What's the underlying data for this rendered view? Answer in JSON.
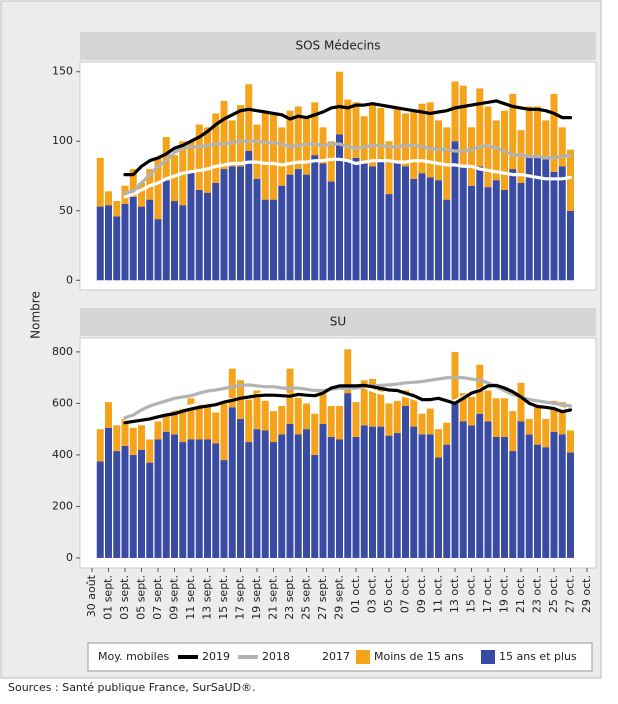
{
  "y_label": "Nombre",
  "legend_title": "Moy. mobiles",
  "source": "Sources : Santé publique France, SurSaUD®.",
  "chart_data": [
    {
      "type": "bar",
      "stacked": true,
      "title": "SOS Médecins",
      "ylim": [
        -7,
        157
      ],
      "yticks": [
        0,
        50,
        100,
        150
      ],
      "series": [
        {
          "name": "15 ans et plus",
          "type": "bar",
          "color": "#3a4ba3",
          "values": [
            null,
            53,
            54,
            46,
            55,
            60,
            53,
            58,
            44,
            72,
            57,
            54,
            78,
            65,
            63,
            70,
            80,
            82,
            82,
            93,
            73,
            58,
            58,
            68,
            76,
            80,
            76,
            90,
            84,
            71,
            105,
            87,
            88,
            84,
            82,
            86,
            62,
            86,
            82,
            73,
            77,
            74,
            72,
            58,
            100,
            83,
            68,
            82,
            67,
            72,
            65,
            80,
            70,
            90,
            88,
            87,
            78,
            82,
            50,
            null,
            null
          ]
        },
        {
          "name": "Moins de 15 ans",
          "type": "bar",
          "color": "#f5a31a",
          "values": [
            null,
            35,
            10,
            11,
            13,
            20,
            17,
            22,
            44,
            31,
            33,
            46,
            22,
            47,
            47,
            50,
            49,
            33,
            44,
            48,
            39,
            63,
            62,
            42,
            46,
            45,
            42,
            38,
            26,
            29,
            45,
            43,
            40,
            34,
            45,
            38,
            38,
            39,
            38,
            48,
            50,
            54,
            43,
            52,
            43,
            57,
            42,
            56,
            58,
            43,
            57,
            54,
            38,
            35,
            37,
            28,
            56,
            28,
            44,
            null,
            null
          ]
        },
        {
          "name": "2019",
          "type": "line",
          "color": "#000000",
          "values": [
            null,
            null,
            null,
            null,
            76,
            76,
            82,
            86,
            88,
            91,
            95,
            97,
            100,
            103,
            107,
            112,
            116,
            119,
            122,
            123,
            122,
            121,
            120,
            119,
            116,
            118,
            117,
            119,
            121,
            124,
            125,
            124,
            126,
            126,
            127,
            126,
            125,
            124,
            123,
            122,
            121,
            120,
            121,
            122,
            124,
            125,
            126,
            127,
            128,
            129,
            127,
            125,
            124,
            123,
            123,
            122,
            120,
            117,
            117,
            null,
            null
          ]
        },
        {
          "name": "2018",
          "type": "line",
          "color": "#b3b3b3",
          "values": [
            null,
            null,
            null,
            null,
            63,
            64,
            70,
            76,
            82,
            86,
            92,
            95,
            96,
            96,
            97,
            98,
            98,
            99,
            100,
            100,
            100,
            99,
            99,
            98,
            96,
            97,
            98,
            98,
            97,
            98,
            98,
            96,
            95,
            96,
            97,
            97,
            96,
            96,
            97,
            97,
            96,
            95,
            94,
            94,
            93,
            93,
            94,
            96,
            97,
            95,
            93,
            90,
            90,
            89,
            89,
            88,
            88,
            89,
            90,
            null,
            null
          ]
        },
        {
          "name": "2017",
          "type": "line",
          "color": "#ffffff",
          "values": [
            null,
            null,
            null,
            null,
            60,
            62,
            65,
            68,
            70,
            73,
            75,
            77,
            78,
            79,
            80,
            82,
            83,
            84,
            84,
            85,
            85,
            84,
            84,
            83,
            84,
            85,
            85,
            86,
            86,
            87,
            87,
            86,
            84,
            85,
            86,
            86,
            86,
            85,
            85,
            86,
            86,
            85,
            84,
            83,
            83,
            82,
            82,
            80,
            79,
            78,
            77,
            76,
            76,
            75,
            74,
            73,
            73,
            73,
            74,
            null,
            null
          ]
        }
      ]
    },
    {
      "type": "bar",
      "stacked": true,
      "title": "SU",
      "categories": [
        "30 août",
        null,
        "01 sept.",
        null,
        "03 sept.",
        null,
        "05 sept.",
        null,
        "07 sept.",
        null,
        "09 sept.",
        null,
        "11 sept.",
        null,
        "13 sept.",
        null,
        "15 sept.",
        null,
        "17 sept.",
        null,
        "19 sept.",
        null,
        "21 sept.",
        null,
        "23 sept.",
        null,
        "25 sept.",
        null,
        "27 sept.",
        null,
        "29 sept.",
        null,
        "01 oct.",
        null,
        "03 oct.",
        null,
        "05 oct.",
        null,
        "07 oct.",
        null,
        "09 oct.",
        null,
        "11 oct.",
        null,
        "13 oct.",
        null,
        "15 oct.",
        null,
        "17 oct.",
        null,
        "19 oct.",
        null,
        "21 oct.",
        null,
        "23 oct.",
        null,
        "25 oct.",
        null,
        "27 oct.",
        null,
        "29 oct."
      ],
      "ylim": [
        -39,
        854
      ],
      "yticks": [
        0,
        200,
        400,
        600,
        800
      ],
      "series": [
        {
          "name": "15 ans et plus",
          "type": "bar",
          "color": "#3a4ba3",
          "values": [
            null,
            375,
            505,
            415,
            435,
            400,
            420,
            370,
            460,
            490,
            480,
            450,
            460,
            460,
            460,
            445,
            380,
            585,
            540,
            450,
            500,
            495,
            450,
            480,
            520,
            480,
            500,
            400,
            520,
            470,
            460,
            640,
            470,
            515,
            510,
            510,
            475,
            485,
            590,
            510,
            480,
            480,
            390,
            440,
            605,
            530,
            515,
            560,
            530,
            470,
            470,
            415,
            530,
            480,
            440,
            430,
            490,
            480,
            410,
            null,
            null
          ]
        },
        {
          "name": "Moins de 15 ans",
          "type": "bar",
          "color": "#f5a31a",
          "values": [
            null,
            125,
            100,
            100,
            105,
            105,
            95,
            90,
            70,
            65,
            100,
            140,
            160,
            145,
            135,
            120,
            220,
            150,
            150,
            165,
            150,
            115,
            120,
            110,
            215,
            160,
            100,
            160,
            130,
            120,
            130,
            170,
            135,
            175,
            185,
            160,
            125,
            125,
            60,
            115,
            80,
            100,
            110,
            85,
            195,
            110,
            110,
            190,
            120,
            150,
            150,
            155,
            150,
            60,
            175,
            110,
            120,
            125,
            85,
            null,
            null
          ]
        },
        {
          "name": "2019",
          "type": "line",
          "color": "#000000",
          "values": [
            null,
            null,
            null,
            null,
            525,
            530,
            535,
            540,
            548,
            555,
            560,
            570,
            578,
            585,
            590,
            595,
            605,
            612,
            620,
            625,
            630,
            632,
            632,
            630,
            628,
            635,
            632,
            630,
            640,
            660,
            668,
            668,
            668,
            670,
            665,
            658,
            652,
            650,
            640,
            630,
            615,
            615,
            620,
            610,
            600,
            620,
            640,
            650,
            668,
            670,
            660,
            645,
            625,
            600,
            588,
            585,
            580,
            568,
            575,
            null,
            null
          ]
        },
        {
          "name": "2018",
          "type": "line",
          "color": "#b3b3b3",
          "values": [
            null,
            null,
            null,
            null,
            545,
            555,
            575,
            590,
            600,
            610,
            620,
            625,
            630,
            640,
            648,
            652,
            658,
            665,
            670,
            672,
            668,
            665,
            665,
            660,
            658,
            660,
            655,
            650,
            650,
            655,
            660,
            658,
            660,
            665,
            668,
            670,
            672,
            675,
            680,
            682,
            685,
            690,
            695,
            700,
            700,
            700,
            695,
            690,
            680,
            665,
            650,
            635,
            625,
            615,
            610,
            605,
            600,
            595,
            590,
            null,
            null
          ]
        },
        {
          "name": "2017",
          "type": "line",
          "color": "#ffffff",
          "values": [
            null,
            null,
            null,
            null,
            530,
            540,
            548,
            555,
            562,
            570,
            578,
            585,
            590,
            600,
            605,
            610,
            612,
            615,
            620,
            625,
            632,
            640,
            645,
            640,
            630,
            628,
            625,
            630,
            640,
            650,
            655,
            660,
            662,
            665,
            650,
            640,
            640,
            635,
            630,
            620,
            610,
            600,
            600,
            605,
            610,
            625,
            640,
            655,
            660,
            662,
            650,
            640,
            625,
            610,
            600,
            595,
            590,
            580,
            570,
            null,
            null
          ]
        }
      ]
    }
  ]
}
